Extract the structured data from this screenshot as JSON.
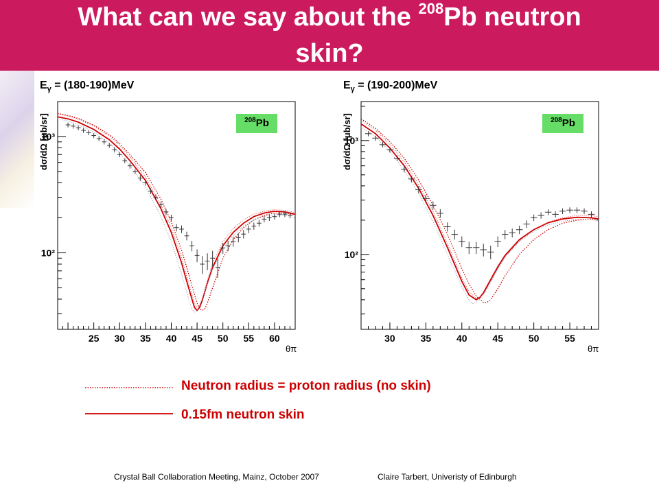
{
  "slide": {
    "title_prefix": "What can we say about the ",
    "title_superscript": "208",
    "title_suffix": "Pb neutron",
    "title_line2": "skin?",
    "legend": [
      {
        "label": "Neutron radius = proton radius (no skin)",
        "style": "dotted",
        "color": "#cc0000"
      },
      {
        "label": "0.15fm neutron skin",
        "style": "solid",
        "color": "#cc0000"
      }
    ],
    "footer_left": "Crystal Ball Collaboration Meeting, Mainz,  October 2007",
    "footer_right": "Claire Tarbert, Univeristy of Edinburgh",
    "colors": {
      "title_bg": "#cc1a5f",
      "badge_bg": "#66dd66",
      "curve": "#cc0000",
      "curve_alt": "#8899bb"
    }
  },
  "chart_data": [
    {
      "type": "scatter",
      "energy_symbol": "E",
      "energy_subscript": "γ",
      "energy_range": " = (180-190)MeV",
      "ylabel": "dσ/dΩ [μb/sr]",
      "xlabel": "θπ",
      "badge_superscript": "208",
      "badge_text": "Pb",
      "yscale": "log",
      "xlim": [
        18,
        64
      ],
      "ylim": [
        22,
        2000
      ],
      "xticks": [
        25,
        30,
        35,
        40,
        45,
        50,
        55,
        60
      ],
      "yticks": [
        {
          "value": 100,
          "label": "10²"
        },
        {
          "value": 1000,
          "label": "10³"
        }
      ],
      "data_points": {
        "x": [
          20,
          21,
          22,
          23,
          24,
          25,
          26,
          27,
          28,
          29,
          30,
          31,
          32,
          33,
          34,
          35,
          36,
          37,
          38,
          39,
          40,
          41,
          42,
          43,
          44,
          45,
          46,
          47,
          48,
          49,
          50,
          51,
          52,
          53,
          54,
          55,
          56,
          57,
          58,
          59,
          60,
          61,
          62,
          63
        ],
        "y": [
          1260,
          1230,
          1190,
          1130,
          1080,
          1020,
          960,
          900,
          840,
          770,
          700,
          620,
          560,
          500,
          440,
          400,
          340,
          300,
          260,
          225,
          200,
          165,
          160,
          140,
          115,
          95,
          80,
          85,
          90,
          75,
          110,
          115,
          125,
          135,
          145,
          160,
          170,
          180,
          195,
          200,
          205,
          215,
          215,
          210
        ],
        "yerr": [
          60,
          60,
          60,
          55,
          50,
          50,
          45,
          45,
          40,
          40,
          35,
          30,
          30,
          25,
          25,
          20,
          20,
          18,
          16,
          14,
          13,
          12,
          12,
          12,
          12,
          12,
          14,
          14,
          14,
          14,
          12,
          12,
          12,
          12,
          12,
          12,
          12,
          12,
          12,
          12,
          12,
          12,
          12,
          12
        ]
      },
      "series": [
        {
          "style": "solid",
          "x": [
            18,
            20,
            22,
            25,
            28,
            30,
            32,
            35,
            38,
            40,
            42,
            43,
            44,
            44.5,
            45,
            45.5,
            46,
            47,
            48,
            50,
            52,
            54,
            56,
            58,
            60,
            62,
            64
          ],
          "y": [
            1480,
            1420,
            1330,
            1150,
            940,
            780,
            620,
            420,
            240,
            150,
            82,
            57,
            40,
            34,
            32,
            34,
            39,
            55,
            75,
            115,
            150,
            180,
            205,
            220,
            228,
            225,
            215
          ]
        },
        {
          "style": "dotted",
          "x": [
            18,
            20,
            22,
            25,
            28,
            30,
            32,
            35,
            38,
            40,
            42,
            43,
            44,
            45,
            45.5,
            46,
            46.5,
            47,
            48,
            50,
            52,
            54,
            56,
            58,
            60,
            62,
            64
          ],
          "y": [
            1580,
            1520,
            1430,
            1250,
            1040,
            870,
            700,
            490,
            290,
            185,
            105,
            75,
            52,
            37,
            33,
            32,
            33,
            37,
            50,
            90,
            130,
            165,
            192,
            210,
            220,
            220,
            212
          ]
        },
        {
          "style": "dotted-red",
          "x": [
            18,
            20,
            22,
            25,
            28,
            30,
            32,
            35,
            38,
            40,
            42,
            43,
            44,
            44.5,
            45,
            45.5,
            46,
            47,
            48,
            50,
            52,
            54,
            56,
            58,
            60,
            62,
            64
          ],
          "y": [
            1560,
            1500,
            1410,
            1230,
            1010,
            840,
            670,
            450,
            260,
            165,
            92,
            63,
            44,
            37,
            34,
            35,
            40,
            58,
            82,
            125,
            162,
            192,
            215,
            228,
            235,
            232,
            222
          ]
        },
        {
          "style": "dotted-blue",
          "x": [
            18,
            20,
            22,
            25,
            28,
            30,
            32,
            35,
            38,
            40,
            42,
            43,
            43.5,
            44,
            44.5,
            45,
            46,
            47,
            48,
            50,
            52,
            54,
            56,
            58,
            60,
            62,
            64
          ],
          "y": [
            1420,
            1360,
            1270,
            1090,
            880,
            720,
            560,
            370,
            205,
            125,
            66,
            46,
            38,
            33,
            31,
            32,
            40,
            55,
            72,
            108,
            140,
            170,
            192,
            206,
            212,
            210,
            200
          ]
        }
      ]
    },
    {
      "type": "scatter",
      "energy_symbol": "E",
      "energy_subscript": "γ",
      "energy_range": " = (190-200)MeV",
      "ylabel": "dσ/dΩ [μb/sr]",
      "xlabel": "θπ",
      "badge_superscript": "208",
      "badge_text": "Pb",
      "yscale": "log",
      "xlim": [
        26,
        59
      ],
      "ylim": [
        22,
        2200
      ],
      "xticks": [
        30,
        35,
        40,
        45,
        50,
        55
      ],
      "yticks": [
        {
          "value": 100,
          "label": "10²"
        },
        {
          "value": 1000,
          "label": "10³"
        }
      ],
      "data_points": {
        "x": [
          27,
          28,
          29,
          30,
          31,
          32,
          33,
          34,
          35,
          36,
          37,
          38,
          39,
          40,
          41,
          42,
          43,
          44,
          45,
          46,
          47,
          48,
          49,
          50,
          51,
          52,
          53,
          54,
          55,
          56,
          57,
          58
        ],
        "y": [
          1150,
          1050,
          920,
          830,
          700,
          560,
          460,
          370,
          310,
          270,
          230,
          175,
          150,
          130,
          115,
          115,
          110,
          105,
          130,
          150,
          155,
          165,
          185,
          210,
          220,
          235,
          225,
          240,
          245,
          245,
          240,
          225
        ],
        "yerr": [
          60,
          55,
          50,
          45,
          40,
          35,
          30,
          28,
          25,
          22,
          20,
          16,
          15,
          14,
          14,
          14,
          14,
          14,
          14,
          14,
          14,
          14,
          14,
          14,
          14,
          14,
          14,
          14,
          14,
          14,
          14,
          14
        ]
      },
      "series": [
        {
          "style": "solid",
          "x": [
            26,
            28,
            30,
            32,
            34,
            36,
            38,
            40,
            41,
            42,
            42.5,
            43,
            44,
            45,
            46,
            48,
            50,
            52,
            54,
            56,
            58,
            59
          ],
          "y": [
            1400,
            1150,
            860,
            600,
            380,
            220,
            115,
            58,
            44,
            40,
            42,
            46,
            60,
            78,
            98,
            135,
            165,
            190,
            205,
            212,
            210,
            205
          ]
        },
        {
          "style": "dotted",
          "x": [
            26,
            28,
            30,
            32,
            34,
            36,
            38,
            40,
            41,
            42,
            43,
            43.5,
            44,
            45,
            46,
            48,
            50,
            52,
            54,
            56,
            58,
            59
          ],
          "y": [
            1550,
            1280,
            980,
            700,
            450,
            270,
            150,
            75,
            55,
            43,
            38,
            38,
            40,
            50,
            65,
            100,
            135,
            165,
            188,
            200,
            205,
            200
          ]
        },
        {
          "style": "dotted-red",
          "x": [
            26,
            28,
            30,
            32,
            34,
            36,
            38,
            40,
            41,
            42,
            42.5,
            43,
            44,
            45,
            46,
            48,
            50,
            52,
            54,
            56,
            58,
            59
          ],
          "y": [
            1500,
            1230,
            930,
            650,
            410,
            240,
            125,
            62,
            47,
            41,
            42,
            45,
            57,
            75,
            95,
            132,
            165,
            192,
            210,
            220,
            220,
            214
          ]
        },
        {
          "style": "dotted-blue",
          "x": [
            26,
            28,
            30,
            32,
            34,
            36,
            38,
            40,
            41,
            41.5,
            42,
            43,
            44,
            45,
            46,
            48,
            50,
            52,
            54,
            56,
            58,
            59
          ],
          "y": [
            1320,
            1080,
            800,
            550,
            345,
            195,
            100,
            52,
            40,
            37,
            38,
            44,
            58,
            75,
            95,
            130,
            160,
            182,
            196,
            203,
            202,
            196
          ]
        }
      ]
    }
  ]
}
